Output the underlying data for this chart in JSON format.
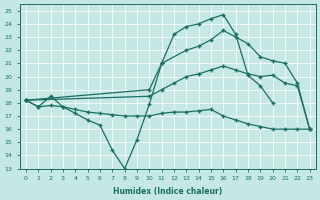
{
  "xlabel": "Humidex (Indice chaleur)",
  "bg_color": "#c5e8e5",
  "line_color": "#1a6e62",
  "grid_color": "#ffffff",
  "xlim": [
    -0.5,
    23.5
  ],
  "ylim": [
    13,
    25.5
  ],
  "yticks": [
    13,
    14,
    15,
    16,
    17,
    18,
    19,
    20,
    21,
    22,
    23,
    24,
    25
  ],
  "xticks": [
    0,
    1,
    2,
    3,
    4,
    5,
    6,
    7,
    8,
    9,
    10,
    11,
    12,
    13,
    14,
    15,
    16,
    17,
    18,
    19,
    20,
    21,
    22,
    23
  ],
  "curve1_x": [
    0,
    1,
    2,
    3,
    4,
    5,
    6,
    7,
    8,
    9,
    10,
    11,
    12,
    13,
    14,
    15,
    16,
    17,
    18,
    19,
    20
  ],
  "curve1_y": [
    18.2,
    17.7,
    18.5,
    17.7,
    17.2,
    16.7,
    16.3,
    14.4,
    13.0,
    15.2,
    17.9,
    21.0,
    23.2,
    23.8,
    24.0,
    24.4,
    24.7,
    23.2,
    20.1,
    19.3,
    18.0
  ],
  "curve1_markers_x": [
    0,
    2,
    3,
    5,
    7,
    8,
    10,
    11,
    12,
    13,
    14,
    15,
    16,
    17,
    18,
    20
  ],
  "curve2_x": [
    0,
    10,
    11,
    13,
    14,
    15,
    16,
    17,
    18,
    19,
    20,
    21,
    22,
    23
  ],
  "curve2_y": [
    18.2,
    19.0,
    21.0,
    22.0,
    22.3,
    22.8,
    23.5,
    23.0,
    22.5,
    21.5,
    21.2,
    21.0,
    19.5,
    16.0
  ],
  "curve3_x": [
    0,
    10,
    11,
    12,
    13,
    14,
    15,
    16,
    17,
    18,
    19,
    20,
    21,
    22,
    23
  ],
  "curve3_y": [
    18.2,
    18.5,
    19.0,
    19.5,
    20.0,
    20.2,
    20.5,
    20.8,
    20.5,
    20.2,
    20.0,
    20.1,
    19.5,
    19.3,
    16.0
  ],
  "curve4_x": [
    0,
    1,
    2,
    3,
    4,
    5,
    6,
    7,
    8,
    9,
    10,
    11,
    12,
    13,
    14,
    15,
    16,
    17,
    18,
    19,
    20,
    21,
    22,
    23
  ],
  "curve4_y": [
    18.2,
    17.7,
    17.8,
    17.7,
    17.5,
    17.3,
    17.2,
    17.1,
    17.0,
    17.0,
    17.0,
    17.2,
    17.3,
    17.3,
    17.4,
    17.5,
    17.0,
    16.7,
    16.4,
    16.2,
    16.0,
    16.0,
    16.0,
    16.0
  ]
}
